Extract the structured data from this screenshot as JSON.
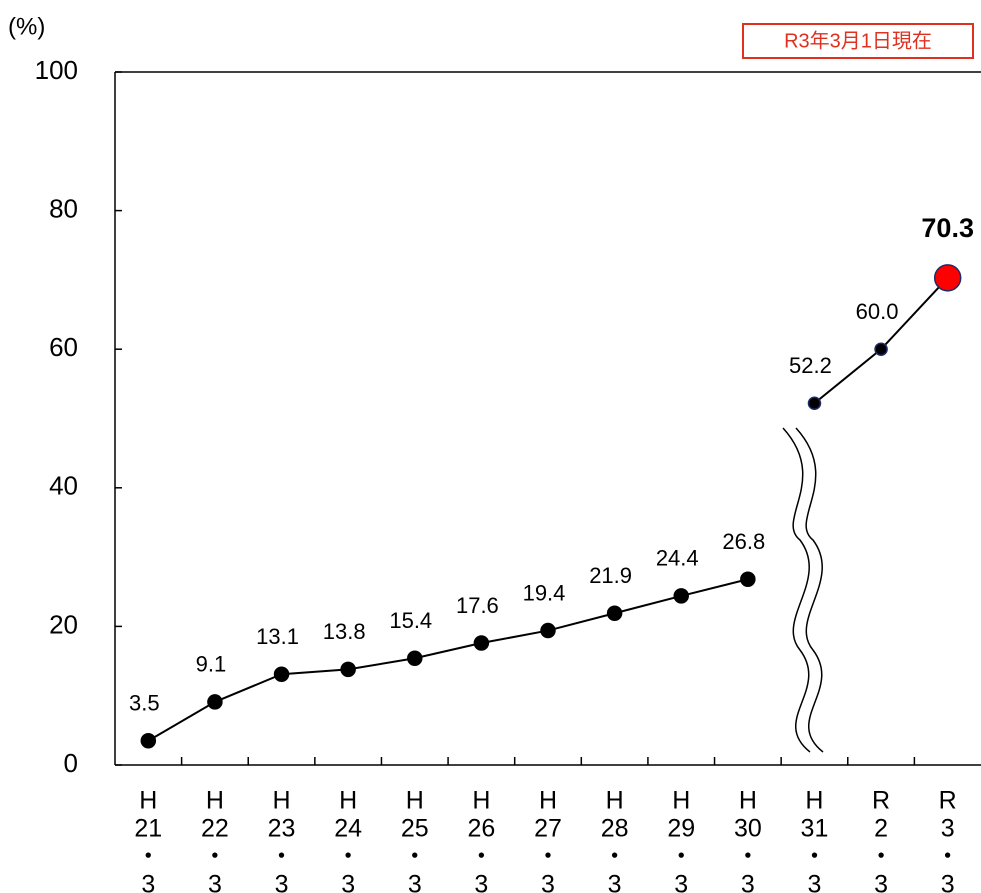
{
  "chart_data": {
    "type": "line",
    "y_unit_label": "(%)",
    "annotation": "R3年3月1日現在",
    "categories": [
      [
        "H",
        "21",
        "・",
        "3"
      ],
      [
        "H",
        "22",
        "・",
        "3"
      ],
      [
        "H",
        "23",
        "・",
        "3"
      ],
      [
        "H",
        "24",
        "・",
        "3"
      ],
      [
        "H",
        "25",
        "・",
        "3"
      ],
      [
        "H",
        "26",
        "・",
        "3"
      ],
      [
        "H",
        "27",
        "・",
        "3"
      ],
      [
        "H",
        "28",
        "・",
        "3"
      ],
      [
        "H",
        "29",
        "・",
        "3"
      ],
      [
        "H",
        "30",
        "・",
        "3"
      ],
      [
        "H",
        "31",
        "・",
        "3"
      ],
      [
        "R",
        "2",
        "・",
        "3"
      ],
      [
        "R",
        "3",
        "・",
        "3"
      ]
    ],
    "series": [
      {
        "color": "#000000",
        "values": [
          3.5,
          9.1,
          13.1,
          13.8,
          15.4,
          17.6,
          19.4,
          21.9,
          24.4,
          26.8,
          null,
          null,
          null
        ]
      },
      {
        "color": "#1f2a6b",
        "highlight_color": "#ff0000",
        "values": [
          null,
          null,
          null,
          null,
          null,
          null,
          null,
          null,
          null,
          null,
          52.2,
          60,
          70.3
        ],
        "value_labels": [
          null,
          null,
          null,
          null,
          null,
          null,
          null,
          null,
          null,
          null,
          "52.2",
          "60.0",
          "70.3"
        ]
      }
    ],
    "ylim": [
      0,
      100
    ],
    "yticks": [
      0,
      20,
      40,
      60,
      80,
      100
    ],
    "grid": false
  }
}
